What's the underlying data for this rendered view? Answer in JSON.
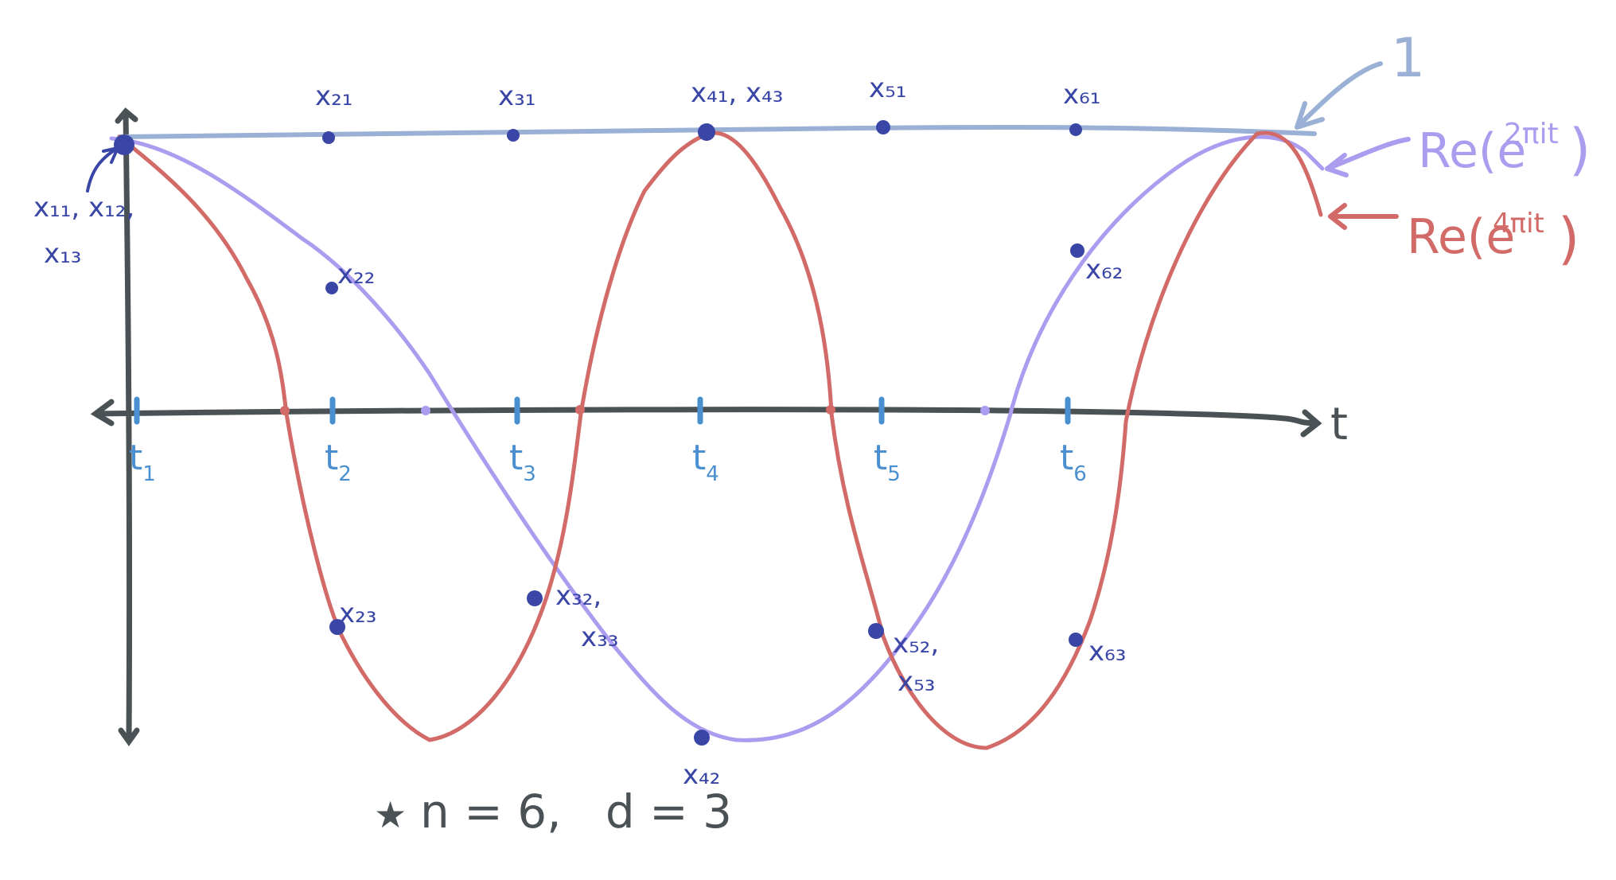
{
  "axes": {
    "t_axis_label": "t"
  },
  "curves": {
    "one": {
      "label": "1",
      "color": "#9ab0d4"
    },
    "re2": {
      "label": "Re(e",
      "exponent": "2πit",
      "close": ")",
      "color": "#ab9cf0"
    },
    "re4": {
      "label": "Re(e",
      "exponent": "4πit",
      "close": ")",
      "color": "#d26a68"
    }
  },
  "colors": {
    "axis": "#4a5256",
    "point": "#3a46a6",
    "tick": "#4a90d0"
  },
  "ticks": [
    {
      "t": "t",
      "sub": "1"
    },
    {
      "t": "t",
      "sub": "2"
    },
    {
      "t": "t",
      "sub": "3"
    },
    {
      "t": "t",
      "sub": "4"
    },
    {
      "t": "t",
      "sub": "5"
    },
    {
      "t": "t",
      "sub": "6"
    }
  ],
  "point_labels": {
    "x11": "x₁₁, x₁₂,",
    "x13": "x₁₃",
    "x21": "x₂₁",
    "x22": "x₂₂",
    "x23": "x₂₃",
    "x31": "x₃₁",
    "x32": "x₃₂,",
    "x33": "x₃₃",
    "x41": "x₄₁, x₄₃",
    "x42": "x₄₂",
    "x51": "x₅₁",
    "x52": "x₅₂,",
    "x53": "x₅₃",
    "x61": "x₆₁",
    "x62": "x₆₂",
    "x63": "x₆₃"
  },
  "note": {
    "star": "★",
    "text": "n = 6,   d = 3"
  }
}
